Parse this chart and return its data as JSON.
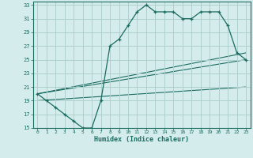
{
  "xlabel": "Humidex (Indice chaleur)",
  "bg_color": "#d4eceb",
  "grid_color": "#aed0cd",
  "line_color": "#1a6b60",
  "xlim": [
    -0.5,
    23.5
  ],
  "ylim": [
    15,
    33.5
  ],
  "xticks": [
    0,
    1,
    2,
    3,
    4,
    5,
    6,
    7,
    8,
    9,
    10,
    11,
    12,
    13,
    14,
    15,
    16,
    17,
    18,
    19,
    20,
    21,
    22,
    23
  ],
  "yticks": [
    15,
    17,
    19,
    21,
    23,
    25,
    27,
    29,
    31,
    33
  ],
  "main_x": [
    0,
    1,
    2,
    3,
    4,
    5,
    6,
    7,
    8,
    9,
    10,
    11,
    12,
    13,
    14,
    15,
    16,
    17,
    18,
    19,
    20,
    21,
    22,
    23
  ],
  "main_y": [
    20,
    19,
    18,
    17,
    16,
    15,
    15,
    19,
    27,
    28,
    30,
    32,
    33,
    32,
    32,
    32,
    31,
    31,
    32,
    32,
    32,
    30,
    26,
    25
  ],
  "line2_x": [
    0,
    23
  ],
  "line2_y": [
    20,
    26
  ],
  "line3_x": [
    0,
    23
  ],
  "line3_y": [
    20,
    25
  ],
  "line4_x": [
    0,
    23
  ],
  "line4_y": [
    19,
    21
  ]
}
